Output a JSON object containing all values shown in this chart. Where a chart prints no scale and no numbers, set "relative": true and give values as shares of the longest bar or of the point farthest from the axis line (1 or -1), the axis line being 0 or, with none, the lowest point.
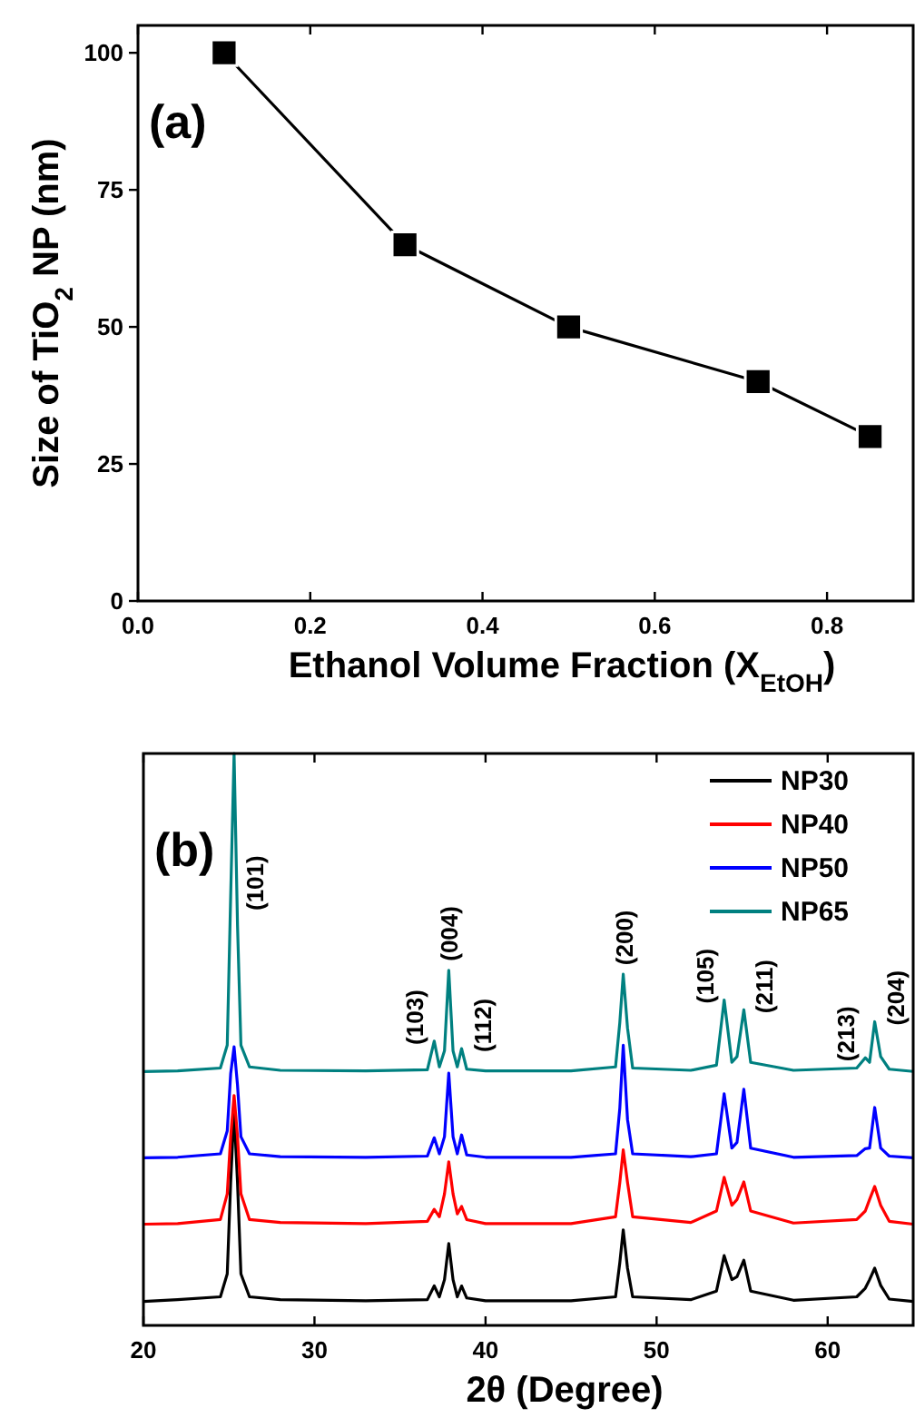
{
  "chart_data": [
    {
      "type": "line",
      "xlabel": "Ethanol Volume Fraction (X$_{EtOH}$)",
      "ylabel": "Size of TiO$_{2}$ NP (nm)",
      "annotations": [
        "(a)"
      ],
      "x": [
        0.1,
        0.31,
        0.5,
        0.72,
        0.85
      ],
      "series": [
        {
          "color": "#000000",
          "values": [
            100,
            65,
            50,
            40,
            30
          ]
        }
      ],
      "xlim": [
        0,
        0.9
      ],
      "xticks": [
        {
          "value": 0,
          "label": "0.0"
        },
        0.2,
        0.4,
        0.6,
        0.8
      ],
      "ylim": [
        0,
        105
      ],
      "yticks": [
        0,
        25,
        50,
        75,
        100
      ],
      "marker": "square",
      "line_style": "solid",
      "grid": false,
      "legend": false
    },
    {
      "type": "line",
      "relative": true,
      "xlabel": "2θ (Degree)",
      "tick_labels": "x",
      "legend": "top right",
      "marker": "none",
      "line_style": "solid",
      "annotations": [
        "(b)",
        {
          "text": "(101)",
          "x": 25.5,
          "y": 0.7
        },
        {
          "text": "(103)",
          "x": 37.0,
          "y": 0.497
        },
        {
          "text": "(004)",
          "x": 37.85,
          "y": 0.621
        },
        {
          "text": "(112)",
          "x": 38.6,
          "y": 0.484
        },
        {
          "text": "(200)",
          "x": 48.05,
          "y": 0.614
        },
        {
          "text": "(105)",
          "x": 53.95,
          "y": 0.569
        },
        {
          "text": "(211)",
          "x": 55.1,
          "y": 0.552
        },
        {
          "text": "(213)",
          "x": 62.2,
          "y": 0.468
        },
        {
          "text": "(204)",
          "x": 62.75,
          "y": 0.531
        }
      ],
      "x": [
        20,
        22,
        24.5,
        24.9,
        25.1,
        25.3,
        25.5,
        25.7,
        26.2,
        28,
        33,
        36.6,
        37.0,
        37.3,
        37.6,
        37.85,
        38.1,
        38.35,
        38.6,
        38.9,
        40,
        45,
        47.6,
        47.85,
        48.05,
        48.3,
        48.6,
        52,
        53.5,
        53.95,
        54.4,
        54.7,
        55.1,
        55.5,
        58,
        61.7,
        62.2,
        62.45,
        62.75,
        63.1,
        63.6,
        65
      ],
      "series": [
        {
          "name": "NP30",
          "color": "#000000",
          "values": [
            0.042,
            0.045,
            0.05,
            0.09,
            0.25,
            0.376,
            0.25,
            0.09,
            0.05,
            0.045,
            0.043,
            0.045,
            0.069,
            0.05,
            0.08,
            0.143,
            0.08,
            0.05,
            0.069,
            0.048,
            0.043,
            0.043,
            0.05,
            0.11,
            0.167,
            0.1,
            0.05,
            0.045,
            0.06,
            0.122,
            0.08,
            0.085,
            0.114,
            0.06,
            0.044,
            0.05,
            0.065,
            0.08,
            0.1,
            0.07,
            0.046,
            0.042
          ]
        },
        {
          "name": "NP40",
          "color": "#ff0000",
          "values": [
            0.177,
            0.178,
            0.185,
            0.23,
            0.33,
            0.402,
            0.33,
            0.23,
            0.185,
            0.18,
            0.178,
            0.182,
            0.203,
            0.19,
            0.23,
            0.286,
            0.23,
            0.195,
            0.208,
            0.185,
            0.178,
            0.178,
            0.19,
            0.25,
            0.307,
            0.25,
            0.19,
            0.18,
            0.2,
            0.259,
            0.21,
            0.22,
            0.251,
            0.2,
            0.179,
            0.185,
            0.2,
            0.22,
            0.243,
            0.21,
            0.182,
            0.177
          ]
        },
        {
          "name": "NP50",
          "color": "#0000ff",
          "values": [
            0.293,
            0.294,
            0.3,
            0.34,
            0.44,
            0.487,
            0.42,
            0.33,
            0.3,
            0.295,
            0.294,
            0.296,
            0.328,
            0.3,
            0.33,
            0.441,
            0.33,
            0.3,
            0.333,
            0.298,
            0.294,
            0.294,
            0.3,
            0.38,
            0.49,
            0.36,
            0.3,
            0.295,
            0.3,
            0.405,
            0.31,
            0.32,
            0.413,
            0.31,
            0.294,
            0.297,
            0.309,
            0.31,
            0.381,
            0.31,
            0.296,
            0.293
          ]
        },
        {
          "name": "NP65",
          "color": "#008080",
          "values": [
            0.444,
            0.445,
            0.45,
            0.49,
            0.75,
            1,
            0.7,
            0.49,
            0.452,
            0.446,
            0.445,
            0.447,
            0.497,
            0.452,
            0.48,
            0.621,
            0.48,
            0.452,
            0.484,
            0.448,
            0.445,
            0.445,
            0.452,
            0.53,
            0.614,
            0.52,
            0.45,
            0.446,
            0.455,
            0.569,
            0.46,
            0.47,
            0.552,
            0.46,
            0.446,
            0.45,
            0.468,
            0.46,
            0.531,
            0.47,
            0.448,
            0.444
          ]
        }
      ],
      "xlim": [
        20,
        65
      ],
      "xticks": [
        20,
        30,
        40,
        50,
        60
      ]
    }
  ]
}
